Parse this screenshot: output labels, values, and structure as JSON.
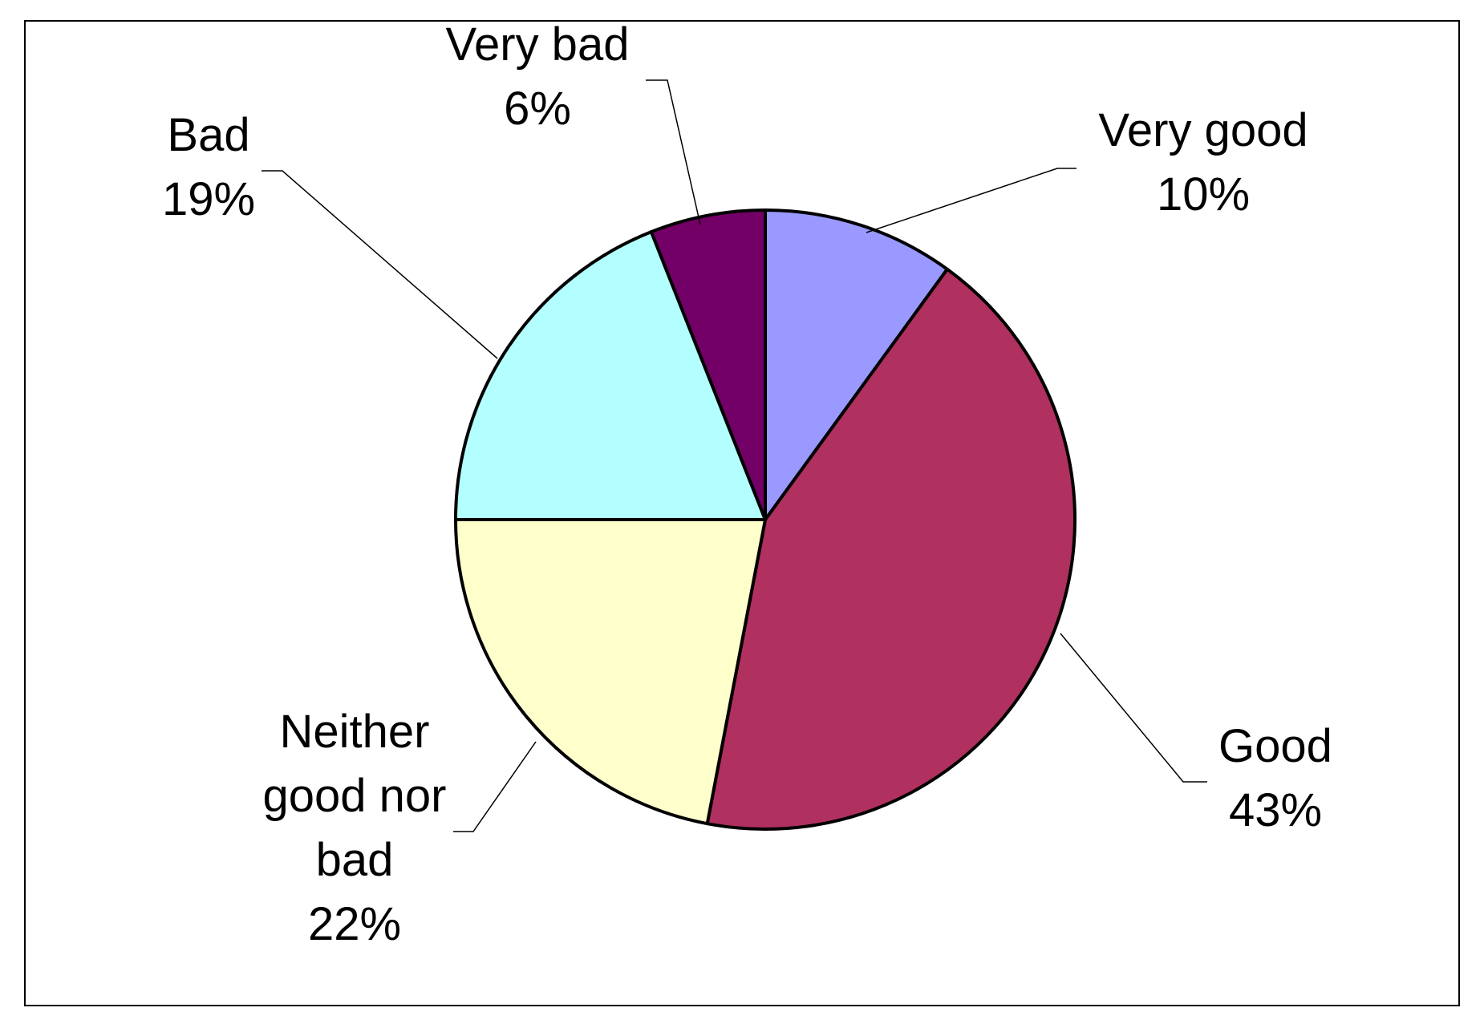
{
  "chart_data": {
    "type": "pie",
    "title": "",
    "slices": [
      {
        "name": "Very good",
        "value": 10,
        "label_lines": [
          "Very good",
          "10%"
        ],
        "color": "#9999FF"
      },
      {
        "name": "Good",
        "value": 43,
        "label_lines": [
          "Good",
          "43%"
        ],
        "color": "#B03060"
      },
      {
        "name": "Neither good nor bad",
        "value": 22,
        "label_lines": [
          "Neither",
          "good nor",
          "bad",
          "22%"
        ],
        "color": "#FFFFCC"
      },
      {
        "name": "Bad",
        "value": 19,
        "label_lines": [
          "Bad",
          "19%"
        ],
        "color": "#B3FFFF"
      },
      {
        "name": "Very bad",
        "value": 6,
        "label_lines": [
          "Very bad",
          "6%"
        ],
        "color": "#730066"
      }
    ],
    "legend": "none"
  }
}
